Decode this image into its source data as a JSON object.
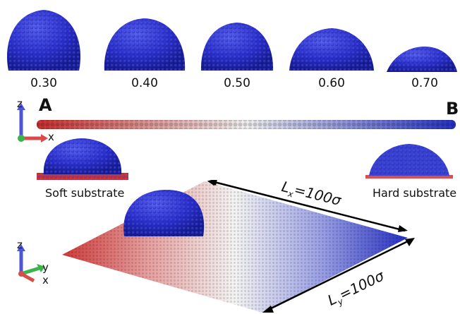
{
  "droplets": {
    "values": [
      "0.30",
      "0.40",
      "0.50",
      "0.60",
      "0.70"
    ]
  },
  "labels": {
    "a": "A",
    "b": "B",
    "soft": "Soft substrate",
    "hard": "Hard substrate",
    "lx": "L",
    "lx_sub": "x",
    "lx_eq": "=100σ",
    "ly": "L",
    "ly_sub": "y",
    "ly_eq": "=100σ"
  },
  "axes_top": {
    "z": "z",
    "x": "x"
  },
  "axes_bottom": {
    "z": "z",
    "y": "y",
    "x": "x"
  },
  "colors": {
    "droplet": "#2a2fc9",
    "soft_end": "#d63a3a",
    "hard_end": "#2e37c4",
    "mid": "#f2f2f2"
  }
}
